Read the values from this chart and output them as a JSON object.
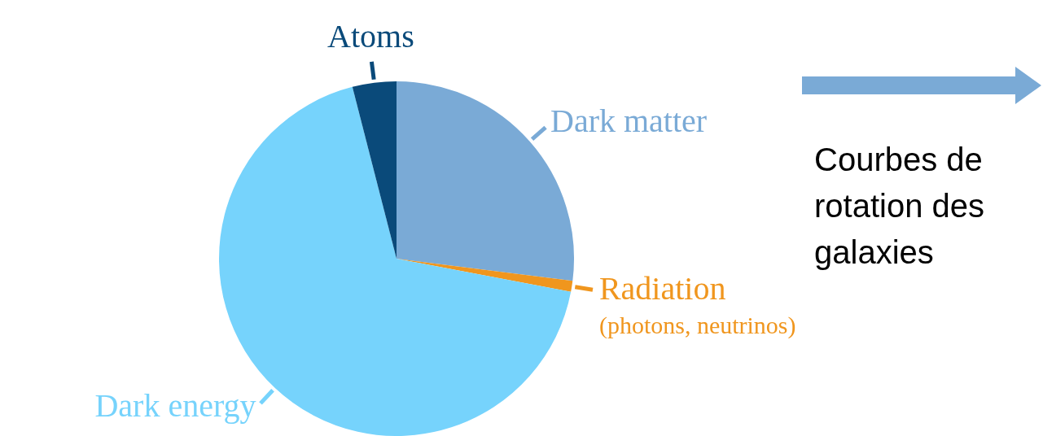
{
  "chart_data": {
    "type": "pie",
    "categories": [
      "Dark matter",
      "Radiation\n(photons, neutrinos)",
      "Dark energy",
      "Atoms"
    ],
    "values": [
      27,
      1,
      68,
      4
    ],
    "colors": [
      "#7aaad6",
      "#f0961e",
      "#76d3fc",
      "#0a4a7a"
    ],
    "legend": false,
    "annotations": [
      "Courbes de rotation des galaxies"
    ]
  }
}
